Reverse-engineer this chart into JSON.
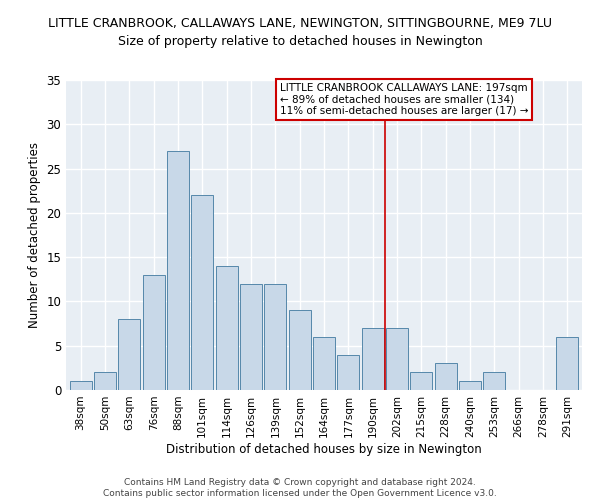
{
  "title": "LITTLE CRANBROOK, CALLAWAYS LANE, NEWINGTON, SITTINGBOURNE, ME9 7LU",
  "subtitle": "Size of property relative to detached houses in Newington",
  "xlabel": "Distribution of detached houses by size in Newington",
  "ylabel": "Number of detached properties",
  "bar_color": "#c8d8e8",
  "bar_edge_color": "#5588aa",
  "categories": [
    "38sqm",
    "50sqm",
    "63sqm",
    "76sqm",
    "88sqm",
    "101sqm",
    "114sqm",
    "126sqm",
    "139sqm",
    "152sqm",
    "164sqm",
    "177sqm",
    "190sqm",
    "202sqm",
    "215sqm",
    "228sqm",
    "240sqm",
    "253sqm",
    "266sqm",
    "278sqm",
    "291sqm"
  ],
  "values": [
    1,
    2,
    8,
    13,
    27,
    22,
    14,
    12,
    12,
    9,
    6,
    4,
    7,
    7,
    2,
    3,
    1,
    2,
    0,
    0,
    6
  ],
  "ylim": [
    0,
    35
  ],
  "yticks": [
    0,
    5,
    10,
    15,
    20,
    25,
    30,
    35
  ],
  "vline_index": 12.5,
  "vline_color": "#cc0000",
  "annotation_text": "LITTLE CRANBROOK CALLAWAYS LANE: 197sqm\n← 89% of detached houses are smaller (134)\n11% of semi-detached houses are larger (17) →",
  "annotation_box_color": "#ffffff",
  "annotation_box_edge_color": "#cc0000",
  "footer1": "Contains HM Land Registry data © Crown copyright and database right 2024.",
  "footer2": "Contains public sector information licensed under the Open Government Licence v3.0.",
  "background_color": "#e8eef4",
  "grid_color": "#ffffff",
  "title_fontsize": 9,
  "subtitle_fontsize": 9,
  "tick_fontsize": 7.5,
  "label_fontsize": 8.5
}
